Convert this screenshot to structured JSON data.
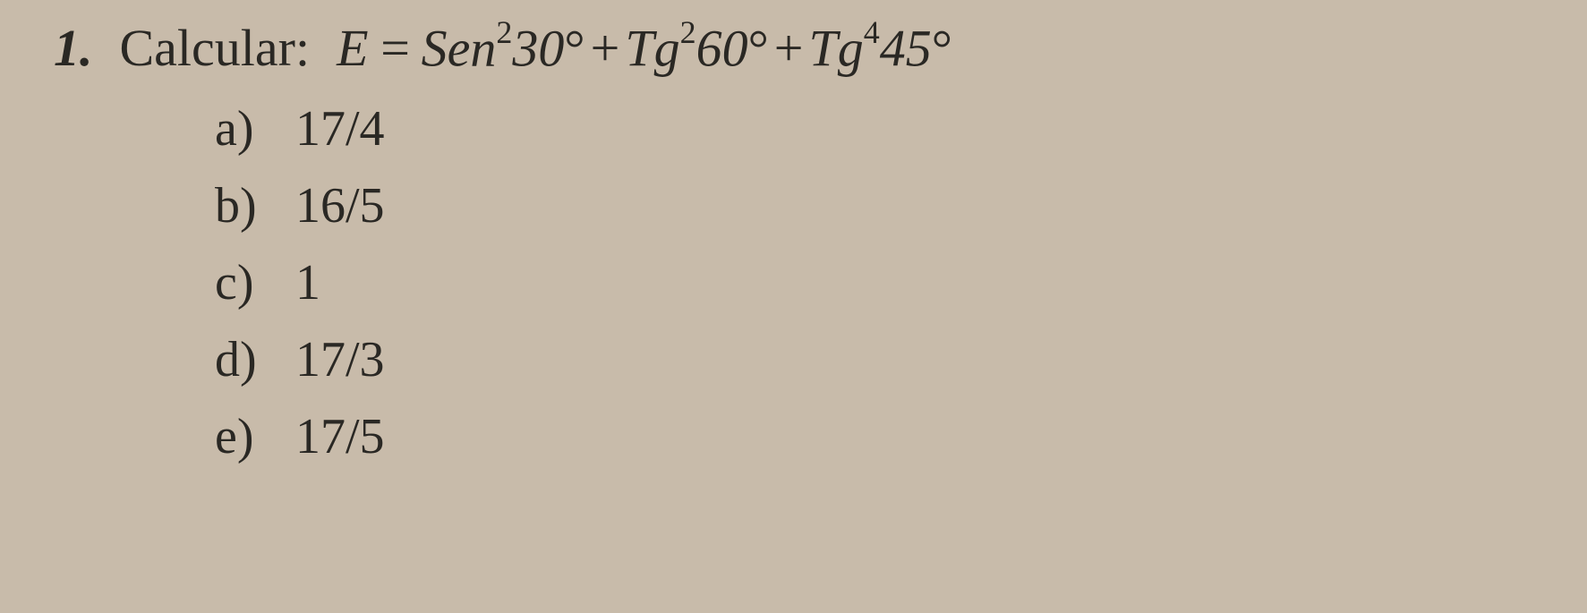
{
  "question": {
    "number": "1.",
    "prompt": "Calcular:",
    "variable": "E",
    "equals": "=",
    "terms": [
      {
        "func": "Sen",
        "exp": "2",
        "ang": "30",
        "deg": "°"
      },
      {
        "op": "+",
        "func": "Tg",
        "exp": "2",
        "ang": "60",
        "deg": "°"
      },
      {
        "op": "+",
        "func": "Tg",
        "exp": "4",
        "ang": "45",
        "deg": "°"
      }
    ]
  },
  "options": [
    {
      "letter": "a)",
      "value": "17/4"
    },
    {
      "letter": "b)",
      "value": "16/5"
    },
    {
      "letter": "c)",
      "value": "1"
    },
    {
      "letter": "d)",
      "value": "17/3"
    },
    {
      "letter": "e)",
      "value": "17/5"
    }
  ],
  "style": {
    "background_color": "#c8bbaa",
    "text_color": "#2a2824",
    "question_fontsize": 58,
    "option_fontsize": 56,
    "sup_fontsize": 36,
    "font_family": "Times New Roman"
  }
}
